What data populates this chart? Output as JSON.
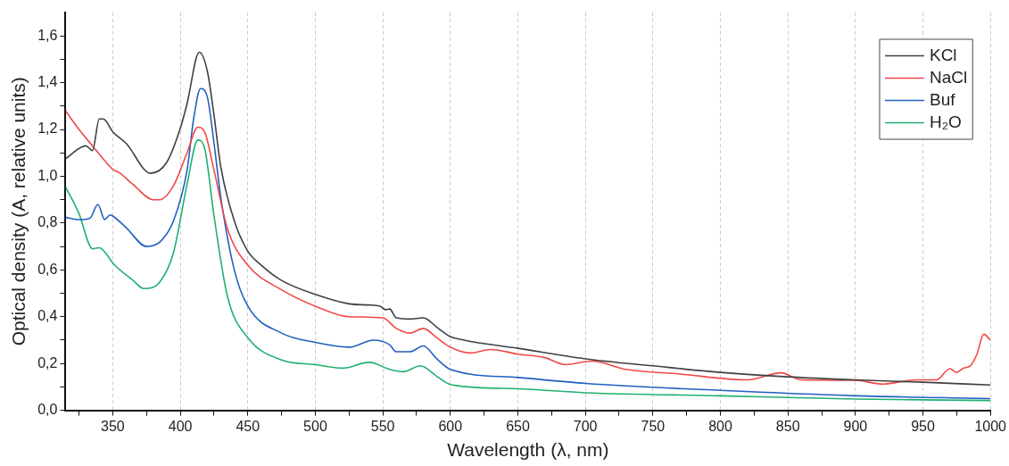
{
  "chart_data": {
    "type": "line",
    "xlabel": "Wavelength (λ, nm)",
    "ylabel": "Optical density (A, relative units)",
    "xlim": [
      315,
      1000
    ],
    "ylim": [
      0,
      1.7
    ],
    "xticks": [
      {
        "value": 325,
        "label": null
      },
      350,
      {
        "value": 375,
        "label": null
      },
      400,
      {
        "value": 425,
        "label": null
      },
      450,
      {
        "value": 475,
        "label": null
      },
      500,
      {
        "value": 525,
        "label": null
      },
      550,
      {
        "value": 575,
        "label": null
      },
      600,
      {
        "value": 625,
        "label": null
      },
      650,
      {
        "value": 675,
        "label": null
      },
      700,
      {
        "value": 725,
        "label": null
      },
      750,
      {
        "value": 775,
        "label": null
      },
      800,
      {
        "value": 825,
        "label": null
      },
      850,
      {
        "value": 875,
        "label": null
      },
      900,
      {
        "value": 925,
        "label": null
      },
      950,
      {
        "value": 975,
        "label": null
      },
      1000
    ],
    "yticks": [
      {
        "value": 0,
        "label": "0,0"
      },
      {
        "value": 0.1,
        "label": null
      },
      {
        "value": 0.2,
        "label": "0,2"
      },
      {
        "value": 0.3,
        "label": null
      },
      {
        "value": 0.4,
        "label": "0,4"
      },
      {
        "value": 0.5,
        "label": null
      },
      {
        "value": 0.6,
        "label": "0,6"
      },
      {
        "value": 0.7,
        "label": null
      },
      {
        "value": 0.8,
        "label": "0,8"
      },
      {
        "value": 0.9,
        "label": null
      },
      {
        "value": 1.0,
        "label": "1,0"
      },
      {
        "value": 1.1,
        "label": null
      },
      {
        "value": 1.2,
        "label": "1,2"
      },
      {
        "value": 1.3,
        "label": null
      },
      {
        "value": 1.4,
        "label": "1,4"
      },
      {
        "value": 1.5,
        "label": null
      },
      {
        "value": 1.6,
        "label": "1,6"
      }
    ],
    "grid": "x",
    "legend": "top right",
    "marker": "none",
    "line_style": "solid",
    "series": [
      {
        "name": "KCl",
        "color": "#404040",
        "x": [
          315,
          330,
          335,
          340,
          343,
          350,
          360,
          378,
          390,
          400,
          405,
          414,
          420,
          425,
          430,
          440,
          450,
          460,
          475,
          500,
          525,
          540,
          548,
          552,
          555,
          560,
          570,
          580,
          590,
          600,
          610,
          650,
          700,
          750,
          800,
          850,
          900,
          950,
          1000
        ],
        "values": [
          1.075,
          1.13,
          1.11,
          1.245,
          1.245,
          1.19,
          1.14,
          1.013,
          1.06,
          1.205,
          1.31,
          1.53,
          1.45,
          1.26,
          1.04,
          0.81,
          0.68,
          0.62,
          0.555,
          0.495,
          0.455,
          0.45,
          0.445,
          0.43,
          0.433,
          0.395,
          0.39,
          0.395,
          0.355,
          0.315,
          0.3,
          0.265,
          0.22,
          0.19,
          0.162,
          0.143,
          0.13,
          0.12,
          0.108
        ]
      },
      {
        "name": "NaCl",
        "color": "#f04848",
        "x": [
          315,
          325,
          335,
          345,
          350,
          355,
          365,
          380,
          385,
          395,
          405,
          413,
          418,
          425,
          435,
          450,
          475,
          500,
          525,
          550,
          560,
          570,
          580,
          590,
          600,
          615,
          630,
          650,
          670,
          685,
          705,
          730,
          770,
          820,
          845,
          860,
          900,
          920,
          945,
          960,
          970,
          975,
          980,
          985,
          990,
          995,
          1000
        ],
        "values": [
          1.28,
          1.2,
          1.13,
          1.06,
          1.03,
          1.015,
          0.965,
          0.9,
          0.9,
          0.96,
          1.1,
          1.21,
          1.19,
          1.025,
          0.775,
          0.62,
          0.515,
          0.445,
          0.4,
          0.395,
          0.35,
          0.33,
          0.35,
          0.31,
          0.27,
          0.245,
          0.26,
          0.24,
          0.225,
          0.195,
          0.21,
          0.175,
          0.155,
          0.13,
          0.16,
          0.13,
          0.128,
          0.112,
          0.13,
          0.13,
          0.178,
          0.162,
          0.18,
          0.19,
          0.24,
          0.325,
          0.3
        ]
      },
      {
        "name": "Buf",
        "color": "#2060c0",
        "x": [
          315,
          325,
          333,
          339,
          344,
          348,
          350,
          360,
          375,
          385,
          395,
          405,
          410,
          415,
          420,
          425,
          430,
          440,
          450,
          475,
          500,
          525,
          543,
          555,
          560,
          570,
          580,
          590,
          600,
          650,
          700,
          800,
          900,
          1000
        ],
        "values": [
          0.825,
          0.815,
          0.82,
          0.88,
          0.815,
          0.835,
          0.83,
          0.78,
          0.7,
          0.72,
          0.81,
          1.025,
          1.25,
          1.375,
          1.34,
          1.14,
          0.91,
          0.6,
          0.445,
          0.33,
          0.29,
          0.27,
          0.3,
          0.28,
          0.25,
          0.25,
          0.275,
          0.22,
          0.175,
          0.14,
          0.115,
          0.085,
          0.062,
          0.05
        ]
      },
      {
        "name": "H₂O",
        "color": "#20b070",
        "x": [
          315,
          325,
          335,
          340,
          345,
          350,
          365,
          373,
          385,
          395,
          405,
          413,
          418,
          425,
          435,
          450,
          475,
          500,
          520,
          540,
          555,
          565,
          578,
          590,
          600,
          650,
          700,
          800,
          900,
          1000
        ],
        "values": [
          0.955,
          0.84,
          0.69,
          0.695,
          0.67,
          0.63,
          0.555,
          0.52,
          0.55,
          0.675,
          0.965,
          1.155,
          1.12,
          0.83,
          0.485,
          0.31,
          0.215,
          0.195,
          0.18,
          0.205,
          0.175,
          0.165,
          0.19,
          0.145,
          0.11,
          0.092,
          0.075,
          0.062,
          0.048,
          0.042
        ]
      }
    ]
  }
}
